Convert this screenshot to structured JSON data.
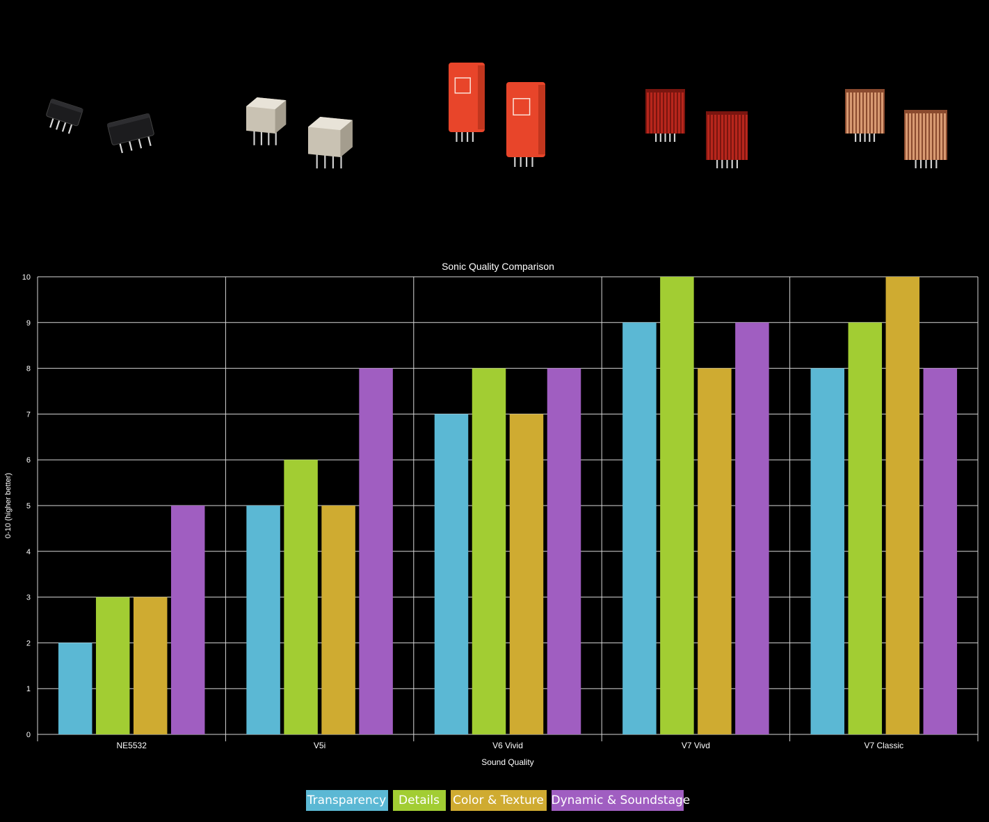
{
  "products": [
    {
      "icon": "ne5532-opamp-chip-icon",
      "colors": {
        "body": "#1c1c1e",
        "pins": "#d8d8d8"
      }
    },
    {
      "icon": "v5i-metal-can-opamp-icon",
      "colors": {
        "body": "#c9c2b3",
        "pins": "#cfcfcf"
      }
    },
    {
      "icon": "v6-vivid-red-opamp-icon",
      "colors": {
        "body": "#e8452a",
        "pins": "#cfcfcf"
      }
    },
    {
      "icon": "v7-vivid-finned-opamp-icon",
      "colors": {
        "body": "#b8261c",
        "pins": "#d0d0d0"
      }
    },
    {
      "icon": "v7-classic-copper-opamp-icon",
      "colors": {
        "body": "#d89a72",
        "pins": "#d0d0d0"
      }
    }
  ],
  "chart_data": {
    "type": "bar",
    "title": "Sonic Quality Comparison",
    "xlabel": "Sound Quality",
    "ylabel": "0-10 (higher better)",
    "ylim": [
      0,
      10
    ],
    "yticks": [
      0,
      1,
      2,
      3,
      4,
      5,
      6,
      7,
      8,
      9,
      10
    ],
    "grid": true,
    "legend_position": "bottom-center",
    "categories": [
      "NE5532",
      "V5i",
      "V6 Vivid",
      "V7 Vivd",
      "V7 Classic"
    ],
    "series": [
      {
        "name": "Transparency",
        "color": "#5bb8d4",
        "values": [
          2,
          5,
          7,
          9,
          8
        ]
      },
      {
        "name": "Details",
        "color": "#a2cd33",
        "values": [
          3,
          6,
          8,
          10,
          9
        ]
      },
      {
        "name": "Color & Texture",
        "color": "#cfab31",
        "values": [
          3,
          5,
          7,
          8,
          10
        ]
      },
      {
        "name": "Dynamic & Soundstage",
        "color": "#a05ec1",
        "values": [
          5,
          8,
          8,
          9,
          8
        ]
      }
    ]
  }
}
